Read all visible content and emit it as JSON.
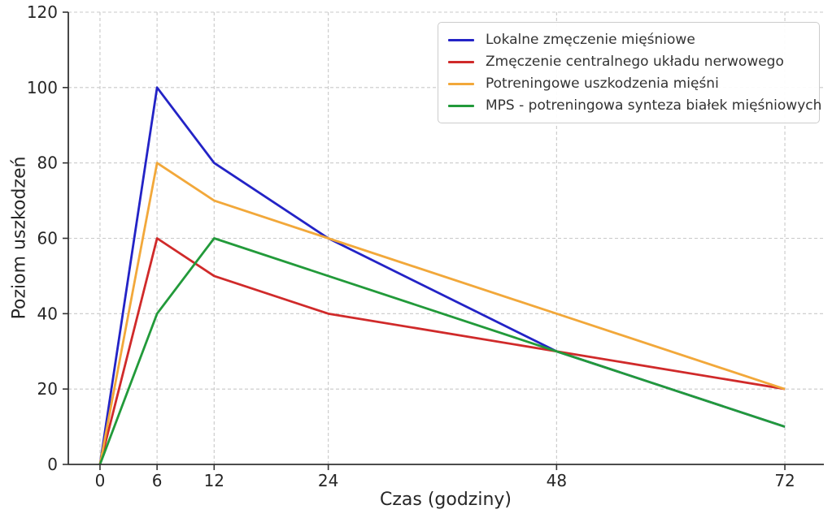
{
  "chart_data": {
    "type": "line",
    "x": [
      0,
      6,
      12,
      24,
      48,
      72
    ],
    "x_ticks": [
      "0",
      "6",
      "12",
      "24",
      "48",
      "72"
    ],
    "y_ticks": [
      "0",
      "20",
      "40",
      "60",
      "80",
      "100",
      "120"
    ],
    "xlim": [
      -3.33,
      76.1
    ],
    "ylim": [
      0,
      120
    ],
    "xlabel": "Czas (godziny)",
    "ylabel": "Poziom uszkodzeń",
    "grid": true,
    "grid_style": "dashed",
    "legend_position": "upper right",
    "series": [
      {
        "name": "Lokalne zmęczenie mięśniowe",
        "color": "#2323c6",
        "values": [
          0,
          100,
          80,
          60,
          30,
          10
        ]
      },
      {
        "name": "Zmęczenie centralnego układu nerwowego",
        "color": "#d02a2a",
        "values": [
          0,
          60,
          50,
          40,
          30,
          20
        ]
      },
      {
        "name": "Potreningowe uszkodzenia mięśni",
        "color": "#f2a83a",
        "values": [
          0,
          80,
          70,
          60,
          40,
          20
        ]
      },
      {
        "name": "MPS - potreningowa synteza białek mięśniowych",
        "color": "#229a3a",
        "values": [
          0,
          40,
          60,
          50,
          30,
          10
        ]
      }
    ],
    "colors": {
      "background": "#ffffff",
      "grid": "#c9c9c9",
      "spine": "#333333",
      "text": "#262626"
    }
  }
}
